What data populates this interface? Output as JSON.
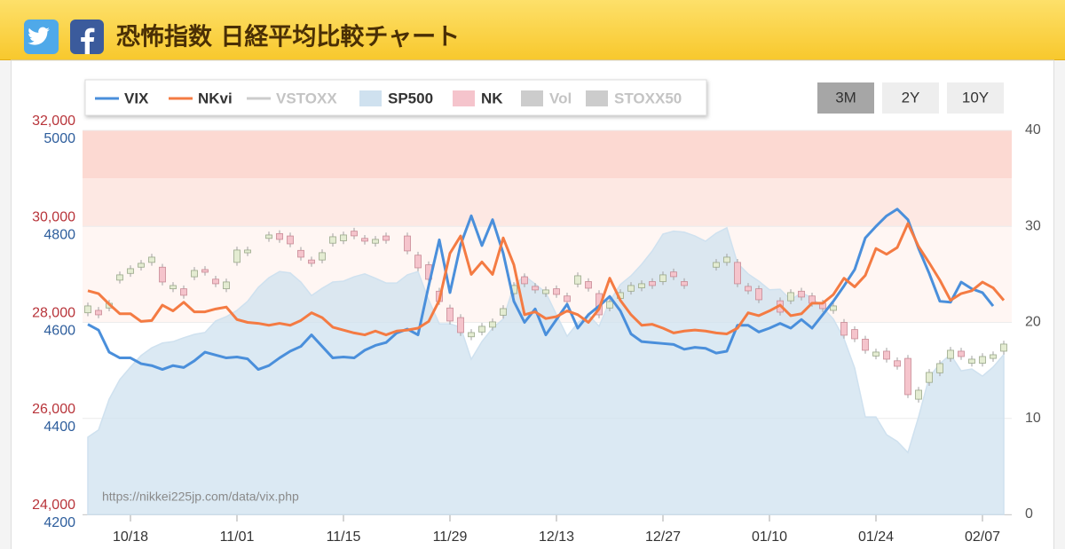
{
  "header": {
    "title": "恐怖指数 日経平均比較チャート"
  },
  "range_buttons": [
    {
      "label": "3M",
      "active": true
    },
    {
      "label": "2Y",
      "active": false
    },
    {
      "label": "10Y",
      "active": false
    }
  ],
  "chart_data": {
    "type": "combo",
    "annotations": [
      "https://nikkei225jp.com/data/vix.php"
    ],
    "categories": [
      null,
      null,
      null,
      null,
      "10/18",
      null,
      null,
      null,
      null,
      null,
      null,
      null,
      null,
      null,
      "11/01",
      null,
      null,
      null,
      null,
      null,
      null,
      null,
      null,
      null,
      "11/15",
      null,
      null,
      null,
      null,
      null,
      null,
      null,
      null,
      null,
      "11/29",
      null,
      null,
      null,
      null,
      null,
      null,
      null,
      null,
      null,
      "12/13",
      null,
      null,
      null,
      null,
      null,
      null,
      null,
      null,
      null,
      "12/27",
      null,
      null,
      null,
      null,
      null,
      null,
      null,
      null,
      null,
      "01/10",
      null,
      null,
      null,
      null,
      null,
      null,
      null,
      null,
      null,
      "01/24",
      null,
      null,
      null,
      null,
      null,
      null,
      null,
      null,
      null,
      "02/07",
      null,
      null,
      null
    ],
    "ylim": [
      24000,
      32000
    ],
    "yticks": [
      {
        "value": 24000,
        "label": "24,000"
      },
      {
        "value": 26000,
        "label": "26,000"
      },
      {
        "value": 28000,
        "label": "28,000"
      },
      {
        "value": 30000,
        "label": "30,000"
      },
      {
        "value": 32000,
        "label": "32,000"
      }
    ],
    "y3lim": [
      4200,
      5000
    ],
    "y3ticks": [
      4200,
      4400,
      4600,
      4800,
      5000
    ],
    "y2lim": [
      0,
      40
    ],
    "y2ticks": [
      0,
      10,
      20,
      30,
      40
    ],
    "bands": [
      {
        "from": 35,
        "to": 40,
        "color": "#fcd9d2"
      },
      {
        "from": 30,
        "to": 35,
        "color": "#fde8e3"
      },
      {
        "from": 20,
        "to": 30,
        "color": "#fff6f3"
      }
    ],
    "series": [
      {
        "name": "VIX",
        "type": "line",
        "color": "#4a8fdb",
        "axis": "y2",
        "values": [
          19.8,
          19.2,
          16.9,
          16.3,
          16.3,
          15.7,
          15.5,
          15.1,
          15.5,
          15.3,
          16.0,
          16.9,
          16.6,
          16.3,
          16.4,
          16.2,
          15.1,
          15.5,
          16.3,
          17.0,
          17.5,
          18.7,
          17.5,
          16.3,
          16.4,
          16.3,
          17.1,
          17.6,
          17.9,
          18.9,
          19.3,
          18.7,
          23.8,
          28.6,
          23.1,
          28.1,
          31.1,
          28.0,
          30.7,
          27.2,
          22.2,
          20.0,
          21.4,
          18.7,
          20.3,
          21.9,
          19.4,
          20.8,
          21.7,
          22.7,
          21.2,
          18.8,
          18.0,
          17.9,
          17.8,
          17.7,
          17.2,
          17.4,
          17.3,
          16.8,
          17.0,
          19.7,
          19.7,
          19.0,
          19.4,
          19.9,
          19.4,
          20.3,
          19.4,
          20.8,
          22.2,
          23.8,
          25.5,
          28.8,
          30.0,
          31.1,
          31.8,
          30.7,
          27.7,
          25.1,
          22.2,
          22.1,
          24.2,
          23.5,
          23.1,
          21.7,
          null,
          null
        ]
      },
      {
        "name": "NKvi",
        "type": "line",
        "color": "#f47b43",
        "axis": "y2",
        "values": [
          23.3,
          23.0,
          21.9,
          20.9,
          20.9,
          20.1,
          20.2,
          21.8,
          21.2,
          22.1,
          21.1,
          21.1,
          21.4,
          21.6,
          20.3,
          20.0,
          19.9,
          19.7,
          19.9,
          19.7,
          20.2,
          21.0,
          20.5,
          19.5,
          19.2,
          18.9,
          18.7,
          19.1,
          18.7,
          19.1,
          19.2,
          19.4,
          20.1,
          22.3,
          27.2,
          29.0,
          25.0,
          26.3,
          25.0,
          28.8,
          26.0,
          20.8,
          21.1,
          20.4,
          20.6,
          21.2,
          20.8,
          20.0,
          21.4,
          24.6,
          22.3,
          20.8,
          19.7,
          19.8,
          19.4,
          18.9,
          19.1,
          19.2,
          19.1,
          18.9,
          18.8,
          19.4,
          21.0,
          20.7,
          21.2,
          21.8,
          20.7,
          20.9,
          22.0,
          22.0,
          22.9,
          24.6,
          23.7,
          24.9,
          27.7,
          27.1,
          27.8,
          30.3,
          27.9,
          26.2,
          24.4,
          22.3,
          23.0,
          23.3,
          24.2,
          23.6,
          22.3,
          null
        ]
      },
      {
        "name": "VSTOXX",
        "type": "line",
        "color": "#cccccc",
        "visible": false
      },
      {
        "name": "SP500",
        "type": "area",
        "color": "#cfe1ef",
        "axis": "y3",
        "values": [
          4361,
          4376,
          4440,
          4481,
          4507,
          4531,
          4547,
          4557,
          4560,
          4568,
          4575,
          4579,
          4603,
          4612,
          4625,
          4644,
          4673,
          4693,
          4706,
          4703,
          4684,
          4656,
          4671,
          4684,
          4686,
          4695,
          4701,
          4692,
          4682,
          4682,
          4699,
          4706,
          4647,
          4597,
          4597,
          4590,
          4523,
          4560,
          4588,
          4607,
          4677,
          4697,
          4680,
          4662,
          4616,
          4571,
          4599,
          4616,
          4592,
          4644,
          4679,
          4697,
          4721,
          4749,
          4784,
          4790,
          4788,
          4780,
          4769,
          4786,
          4797,
          4723,
          4701,
          4686,
          4668,
          4669,
          4647,
          4662,
          4651,
          4631,
          4607,
          4566,
          4505,
          4403,
          4403,
          4366,
          4352,
          4329,
          4403,
          4486,
          4514,
          4533,
          4499,
          4503,
          4488,
          4507,
          4533,
          null
        ]
      },
      {
        "name": "NK",
        "type": "candlestick",
        "color": "#f5c4cc",
        "up_color": "#e4ecd2",
        "open": [
          28200,
          28250,
          28300,
          28880,
          29020,
          29150,
          29250,
          29150,
          28700,
          28700,
          28950,
          29100,
          28900,
          28700,
          29250,
          29450,
          null,
          29750,
          29850,
          29800,
          29500,
          29300,
          29300,
          29650,
          29700,
          29900,
          29750,
          29650,
          29800,
          null,
          29800,
          29400,
          29200,
          28650,
          28300,
          28100,
          27700,
          27800,
          27900,
          28150,
          28600,
          28950,
          28750,
          28600,
          28700,
          28550,
          28800,
          28850,
          28600,
          28300,
          28500,
          28650,
          28720,
          28850,
          28850,
          29050,
          28850,
          null,
          null,
          29150,
          29250,
          29250,
          28750,
          28700,
          null,
          28450,
          28450,
          28650,
          28550,
          28400,
          28250,
          28000,
          27850,
          27650,
          27300,
          27400,
          27200,
          27250,
          26400,
          26750,
          26950,
          27250,
          27400,
          27150,
          27150,
          27250,
          27400,
          null
        ],
        "high": [
          28413,
          28320,
          28468,
          29060,
          29189,
          29300,
          29429,
          29220,
          28838,
          28770,
          29152,
          29170,
          28970,
          28912,
          29577,
          29577,
          null,
          29891,
          29920,
          29870,
          29570,
          29370,
          29522,
          29854,
          29891,
          29970,
          29820,
          29799,
          29870,
          null,
          29870,
          29470,
          29270,
          28720,
          28370,
          28170,
          27858,
          27988,
          28080,
          28357,
          28838,
          29020,
          28820,
          28746,
          28770,
          28620,
          29041,
          28920,
          28670,
          28505,
          28690,
          28838,
          28875,
          28920,
          29060,
          29120,
          28920,
          null,
          null,
          29318,
          29429,
          29320,
          28820,
          28770,
          null,
          28520,
          28690,
          28720,
          28620,
          28470,
          28413,
          28070,
          27920,
          27720,
          27452,
          27470,
          27270,
          27320,
          26657,
          27027,
          27212,
          27489,
          27470,
          27304,
          27359,
          27396,
          27618,
          null
        ],
        "low": [
          28130,
          28088,
          28230,
          28810,
          28950,
          29080,
          29180,
          28772,
          28630,
          28495,
          28880,
          28975,
          28735,
          28630,
          29180,
          29380,
          null,
          29680,
          29659,
          29566,
          29289,
          29160,
          29230,
          29580,
          29630,
          29733,
          29622,
          29580,
          29640,
          null,
          29419,
          29067,
          28827,
          28365,
          27959,
          27718,
          27630,
          27730,
          27830,
          28080,
          28530,
          28735,
          28606,
          28530,
          28513,
          28365,
          28730,
          28642,
          28088,
          28230,
          28430,
          28580,
          28650,
          28698,
          28780,
          28883,
          28698,
          null,
          null,
          29080,
          29180,
          28735,
          28587,
          28402,
          null,
          28143,
          28380,
          28458,
          28328,
          28217,
          28180,
          27663,
          27589,
          27349,
          27230,
          27164,
          27016,
          26425,
          26330,
          26680,
          26880,
          27180,
          27219,
          27080,
          27080,
          27180,
          27330,
          null
        ],
        "close": [
          28343,
          28158,
          28398,
          28990,
          29119,
          29230,
          29359,
          28842,
          28768,
          28565,
          29082,
          29045,
          28805,
          28842,
          29507,
          29507,
          null,
          29821,
          29729,
          29636,
          29359,
          29230,
          29452,
          29784,
          29821,
          29803,
          29692,
          29729,
          29710,
          null,
          29489,
          29137,
          28897,
          28435,
          28029,
          27788,
          27788,
          27918,
          28010,
          28287,
          28768,
          28805,
          28676,
          28676,
          28583,
          28435,
          28971,
          28712,
          28158,
          28435,
          28620,
          28768,
          28805,
          28768,
          28990,
          28953,
          28768,
          null,
          null,
          29248,
          29359,
          28805,
          28657,
          28472,
          null,
          28213,
          28620,
          28528,
          28398,
          28287,
          28343,
          27733,
          27659,
          27419,
          27382,
          27234,
          27086,
          26495,
          26587,
          26957,
          27142,
          27419,
          27289,
          27234,
          27289,
          27326,
          27548,
          null
        ]
      },
      {
        "name": "Vol",
        "type": "bar",
        "color": "#cccccc",
        "visible": false
      },
      {
        "name": "STOXX50",
        "type": "bar",
        "color": "#cccccc",
        "visible": false
      }
    ]
  }
}
